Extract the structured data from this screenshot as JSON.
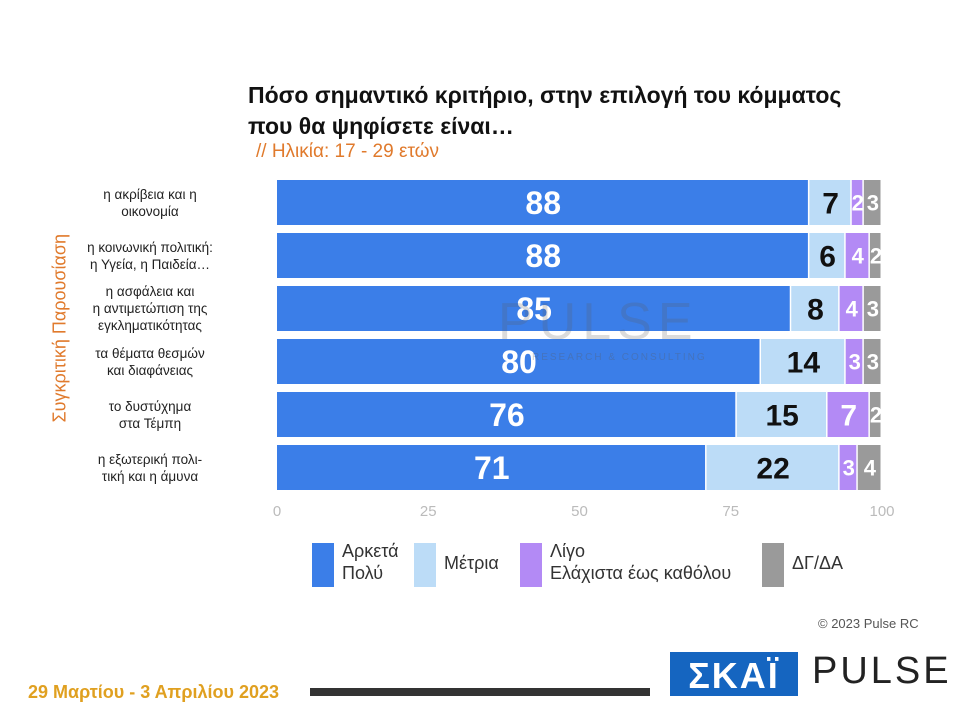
{
  "header": {
    "title": "Πόσο σημαντικό κριτήριο, στην επιλογή του κόμματος που θα ψηφίσετε είναι…",
    "subtitle": "// Ηλικία: 17 - 29 ετών"
  },
  "side_label": "Συγκριτική Παρουσίαση",
  "colors": {
    "series": [
      "#3b7ee8",
      "#bcdcf7",
      "#b38af5",
      "#9a9a9a"
    ],
    "accent": "#e07a2c"
  },
  "chart_data": {
    "type": "bar",
    "orientation": "horizontal",
    "stacked": true,
    "categories": [
      "η ακρίβεια και η οικονομία",
      "η κοινωνική πολιτική: η Υγεία, η Παιδεία…",
      "η ασφάλεια και η αντιμετώπιση της εγκληματικότητας",
      "τα θέματα θεσμών και διαφάνειας",
      "το δυστύχημα στα Τέμπη",
      "η εξωτερική πολιτική και η άμυνα"
    ],
    "category_lines": [
      [
        "η ακρίβεια και η",
        "οικονομία"
      ],
      [
        "η κοινωνική πολιτική:",
        "η Υγεία, η Παιδεία…"
      ],
      [
        "η ασφάλεια και",
        "η αντιμετώπιση της",
        "εγκληματικότητας"
      ],
      [
        "τα θέματα θεσμών",
        "και διαφάνειας"
      ],
      [
        "το δυστύχημα",
        "στα Τέμπη"
      ],
      [
        "η εξωτερική πολι-",
        "τική και η άμυνα"
      ]
    ],
    "series": [
      {
        "name": "Αρκετά Πολύ",
        "values": [
          88,
          88,
          85,
          80,
          76,
          71
        ]
      },
      {
        "name": "Μέτρια",
        "values": [
          7,
          6,
          8,
          14,
          15,
          22
        ]
      },
      {
        "name": "Λίγο Ελάχιστα έως καθόλου",
        "values": [
          2,
          4,
          4,
          3,
          7,
          3
        ]
      },
      {
        "name": "ΔΓ/ΔΑ",
        "values": [
          3,
          2,
          3,
          3,
          2,
          4
        ]
      }
    ],
    "xlim": [
      0,
      100
    ],
    "xticks": [
      "0",
      "25",
      "50",
      "75",
      "100"
    ],
    "legend_position": "bottom"
  },
  "legend": [
    {
      "label": "Αρκετά\nΠολύ"
    },
    {
      "label": "Μέτρια"
    },
    {
      "label": "Λίγο\nΕλάχιστα έως καθόλου"
    },
    {
      "label": "ΔΓ/ΔΑ"
    }
  ],
  "watermark": {
    "main": "PULSE",
    "sub": "RESEARCH & CONSULTING"
  },
  "footer": {
    "copyright": "© 2023 Pulse RC",
    "date": "29 Μαρτίου - 3 Απριλίου 2023",
    "brand_left": "ΣΚΑΪ",
    "brand_right": "PULSE"
  }
}
